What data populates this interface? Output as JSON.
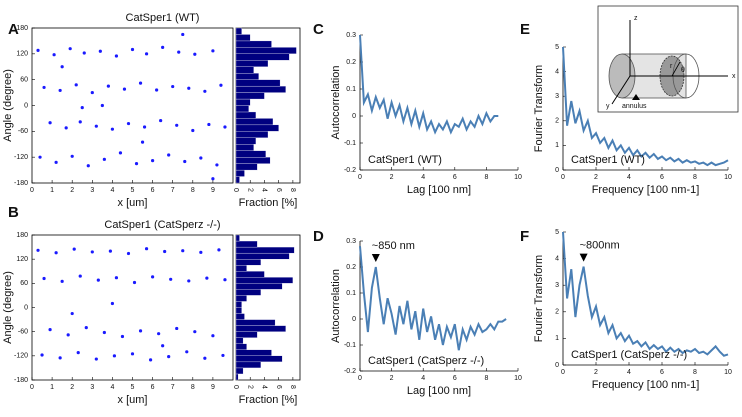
{
  "chart_data": [
    {
      "type": "scatter",
      "panel": "A",
      "title": "CatSper1 (WT)",
      "x_label": "x [um]",
      "y_label": "Angle (degree)",
      "color": "#1a1aff",
      "xlim": [
        0,
        10
      ],
      "ylim": [
        -180,
        180
      ],
      "xticks": [
        0,
        1,
        2,
        3,
        4,
        5,
        6,
        7,
        8,
        9
      ],
      "yticks": [
        -180,
        -120,
        -60,
        0,
        60,
        120,
        180
      ],
      "x": [
        0.3,
        1.1,
        1.9,
        2.6,
        3.4,
        4.2,
        5.0,
        5.7,
        6.5,
        7.3,
        8.1,
        9.0,
        0.6,
        1.4,
        2.2,
        3.0,
        3.8,
        4.6,
        5.4,
        6.2,
        7.0,
        7.8,
        8.6,
        9.4,
        0.9,
        1.7,
        2.4,
        3.2,
        4.0,
        4.8,
        5.6,
        6.4,
        7.2,
        8.0,
        8.8,
        9.6,
        0.4,
        1.2,
        2.0,
        2.8,
        3.6,
        4.4,
        5.2,
        6.0,
        6.8,
        7.6,
        8.4,
        9.2,
        1.5,
        3.5,
        5.5,
        7.5,
        9.0,
        2.5
      ],
      "values": [
        128,
        118,
        132,
        122,
        126,
        115,
        130,
        120,
        135,
        124,
        119,
        127,
        42,
        35,
        48,
        30,
        45,
        38,
        52,
        36,
        44,
        40,
        33,
        47,
        -40,
        -52,
        -38,
        -48,
        -55,
        -42,
        -50,
        -35,
        -46,
        -58,
        -44,
        -50,
        -120,
        -132,
        -118,
        -140,
        -125,
        -110,
        -135,
        -128,
        -115,
        -130,
        -122,
        -138,
        90,
        0,
        -85,
        165,
        -170,
        -5
      ]
    },
    {
      "type": "histogram",
      "x_label": "Fraction [%]",
      "color": "#000080",
      "xlim": [
        0,
        9
      ],
      "xticks": [
        0,
        2,
        4,
        6,
        8
      ],
      "ylim": [
        -180,
        180
      ],
      "bins": [
        -180,
        -165,
        -150,
        -135,
        -120,
        -105,
        -90,
        -75,
        -60,
        -45,
        -30,
        -15,
        0,
        15,
        30,
        45,
        60,
        75,
        90,
        105,
        120,
        135,
        150,
        165,
        180
      ],
      "values": [
        0.5,
        1.2,
        3.0,
        4.8,
        4.2,
        2.5,
        2.8,
        4.5,
        6.0,
        5.2,
        2.8,
        1.8,
        2.0,
        4.0,
        7.0,
        6.2,
        3.2,
        2.5,
        4.5,
        7.5,
        8.5,
        5.0,
        2.0,
        0.8
      ]
    },
    {
      "type": "scatter",
      "panel": "B",
      "title": "CatSper1 (CatSperz -/-)",
      "x_label": "x [um]",
      "y_label": "Angle (degree)",
      "color": "#1a1aff",
      "xlim": [
        0,
        10
      ],
      "ylim": [
        -180,
        180
      ],
      "xticks": [
        0,
        1,
        2,
        3,
        4,
        5,
        6,
        7,
        8,
        9
      ],
      "yticks": [
        -180,
        -120,
        -60,
        0,
        60,
        120,
        180
      ],
      "x": [
        0.3,
        1.2,
        2.1,
        3.0,
        3.9,
        4.8,
        5.7,
        6.6,
        7.5,
        8.4,
        9.3,
        0.6,
        1.5,
        2.4,
        3.3,
        4.2,
        5.1,
        6.0,
        6.9,
        7.8,
        8.7,
        9.6,
        0.9,
        1.8,
        2.7,
        3.6,
        4.5,
        5.4,
        6.3,
        7.2,
        8.1,
        9.0,
        0.5,
        1.4,
        2.3,
        3.2,
        4.1,
        5.0,
        5.9,
        6.8,
        7.7,
        8.6,
        9.5,
        2.0,
        6.5,
        4.0
      ],
      "values": [
        142,
        136,
        145,
        138,
        140,
        134,
        146,
        139,
        141,
        137,
        143,
        72,
        65,
        78,
        68,
        74,
        62,
        76,
        70,
        66,
        73,
        69,
        -55,
        -68,
        -50,
        -62,
        -72,
        -58,
        -65,
        -52,
        -60,
        -70,
        -118,
        -125,
        -112,
        -128,
        -120,
        -115,
        -130,
        -122,
        -110,
        -126,
        -119,
        -15,
        -95,
        10
      ]
    },
    {
      "type": "histogram",
      "x_label": "Fraction [%]",
      "color": "#000080",
      "xlim": [
        0,
        9
      ],
      "xticks": [
        0,
        2,
        4,
        6,
        8
      ],
      "ylim": [
        -180,
        180
      ],
      "bins": [
        -180,
        -165,
        -150,
        -135,
        -120,
        -105,
        -90,
        -75,
        -60,
        -45,
        -30,
        -15,
        0,
        15,
        30,
        45,
        60,
        75,
        90,
        105,
        120,
        135,
        150,
        165,
        180
      ],
      "values": [
        0.3,
        1.0,
        3.5,
        6.5,
        5.0,
        1.5,
        1.0,
        3.0,
        7.0,
        5.5,
        1.2,
        0.8,
        0.8,
        1.5,
        3.5,
        6.5,
        8.0,
        4.0,
        1.5,
        3.5,
        7.5,
        8.2,
        3.0,
        0.5
      ]
    },
    {
      "type": "line",
      "panel": "C",
      "label": "CatSper1 (WT)",
      "x_label": "Lag [100 nm]",
      "y_label": "Autocorrelation",
      "color": "#4a7fb5",
      "xlim": [
        0,
        10
      ],
      "ylim": [
        -0.2,
        0.3
      ],
      "xticks": [
        0,
        2,
        4,
        6,
        8,
        10
      ],
      "yticks": [
        -0.2,
        -0.1,
        0,
        0.1,
        0.2,
        0.3
      ],
      "x": [
        0,
        0.25,
        0.5,
        0.75,
        1,
        1.25,
        1.5,
        1.75,
        2,
        2.25,
        2.5,
        2.75,
        3,
        3.25,
        3.5,
        3.75,
        4,
        4.25,
        4.5,
        4.75,
        5,
        5.25,
        5.5,
        5.75,
        6,
        6.25,
        6.5,
        6.75,
        7,
        7.25,
        7.5,
        7.75,
        8,
        8.25,
        8.5,
        8.75
      ],
      "values": [
        0.3,
        0.05,
        0.08,
        0.02,
        0.07,
        0.03,
        0.06,
        -0.01,
        0.05,
        0.0,
        0.04,
        -0.02,
        0.03,
        -0.03,
        0.02,
        -0.04,
        0.01,
        -0.05,
        -0.02,
        -0.06,
        -0.03,
        -0.05,
        -0.02,
        -0.06,
        -0.03,
        -0.04,
        -0.01,
        -0.05,
        -0.02,
        -0.04,
        0.0,
        -0.03,
        0.01,
        -0.02,
        0.0,
        0.0
      ]
    },
    {
      "type": "line",
      "panel": "D",
      "label": "CatSper1 (CatSperz -/-)",
      "annotation": "~850 nm",
      "x_label": "Lag [100 nm]",
      "y_label": "Autocorrelation",
      "color": "#4a7fb5",
      "xlim": [
        0,
        10
      ],
      "ylim": [
        -0.2,
        0.3
      ],
      "xticks": [
        0,
        2,
        4,
        6,
        8,
        10
      ],
      "yticks": [
        -0.2,
        -0.1,
        0,
        0.1,
        0.2,
        0.3
      ],
      "x": [
        0,
        0.25,
        0.5,
        0.75,
        1,
        1.25,
        1.5,
        1.75,
        2,
        2.25,
        2.5,
        2.75,
        3,
        3.25,
        3.5,
        3.75,
        4,
        4.25,
        4.5,
        4.75,
        5,
        5.25,
        5.5,
        5.75,
        6,
        6.25,
        6.5,
        6.75,
        7,
        7.25,
        7.5,
        7.75,
        8,
        8.25,
        8.5,
        8.75,
        9,
        9.25
      ],
      "values": [
        0.28,
        0.1,
        -0.05,
        0.12,
        0.2,
        0.08,
        -0.02,
        0.08,
        0.02,
        -0.06,
        0.05,
        -0.02,
        0.07,
        -0.04,
        0.03,
        -0.08,
        0.04,
        -0.05,
        0.01,
        -0.08,
        -0.02,
        -0.1,
        -0.03,
        -0.07,
        -0.02,
        -0.12,
        -0.04,
        -0.08,
        -0.03,
        -0.06,
        -0.02,
        -0.05,
        -0.04,
        -0.02,
        -0.04,
        -0.01,
        -0.01,
        0.0
      ]
    },
    {
      "type": "line",
      "panel": "E",
      "label": "CatSper1 (WT)",
      "x_label": "Frequency [100 nm-1]",
      "y_label": "Fourier Transform",
      "color": "#4a7fb5",
      "inset_labels": [
        "z",
        "x",
        "y",
        "r",
        "θ",
        "annulus"
      ],
      "xlim": [
        0,
        10
      ],
      "ylim": [
        0,
        5
      ],
      "xticks": [
        0,
        2,
        4,
        6,
        8,
        10
      ],
      "yticks": [
        0,
        1,
        2,
        3,
        4,
        5
      ],
      "x": [
        0,
        0.25,
        0.5,
        0.75,
        1,
        1.25,
        1.5,
        1.75,
        2,
        2.25,
        2.5,
        2.75,
        3,
        3.25,
        3.5,
        3.75,
        4,
        4.25,
        4.5,
        4.75,
        5,
        5.25,
        5.5,
        5.75,
        6,
        6.25,
        6.5,
        6.75,
        7,
        7.25,
        7.5,
        7.75,
        8,
        8.25,
        8.5,
        8.75,
        9,
        9.25,
        9.5,
        9.75,
        10
      ],
      "values": [
        5.0,
        1.8,
        2.8,
        1.9,
        2.4,
        1.6,
        2.0,
        1.3,
        1.5,
        1.1,
        1.3,
        0.9,
        1.2,
        0.8,
        1.0,
        0.7,
        0.9,
        0.6,
        0.8,
        0.55,
        0.7,
        0.5,
        0.65,
        0.45,
        0.55,
        0.4,
        0.5,
        0.35,
        0.45,
        0.3,
        0.4,
        0.3,
        0.35,
        0.25,
        0.3,
        0.2,
        0.3,
        0.2,
        0.25,
        0.3,
        0.4
      ]
    },
    {
      "type": "line",
      "panel": "F",
      "label": "CatSper1 (CatSperz -/-)",
      "annotation": "~800nm",
      "x_label": "Frequency [100 nm-1]",
      "y_label": "Fourier Transform",
      "color": "#4a7fb5",
      "xlim": [
        0,
        10
      ],
      "ylim": [
        0,
        5
      ],
      "xticks": [
        0,
        2,
        4,
        6,
        8,
        10
      ],
      "yticks": [
        0,
        1,
        2,
        3,
        4,
        5
      ],
      "x": [
        0,
        0.25,
        0.5,
        0.75,
        1,
        1.25,
        1.5,
        1.75,
        2,
        2.25,
        2.5,
        2.75,
        3,
        3.25,
        3.5,
        3.75,
        4,
        4.25,
        4.5,
        4.75,
        5,
        5.25,
        5.5,
        5.75,
        6,
        6.25,
        6.5,
        6.75,
        7,
        7.25,
        7.5,
        7.75,
        8,
        8.25,
        8.5,
        8.75,
        9,
        9.25,
        9.5,
        9.75,
        10
      ],
      "values": [
        5.0,
        2.5,
        3.6,
        1.8,
        3.0,
        3.7,
        2.6,
        1.8,
        2.2,
        1.5,
        1.8,
        1.2,
        1.5,
        1.0,
        1.2,
        0.9,
        1.1,
        0.8,
        0.9,
        0.7,
        0.85,
        0.6,
        0.75,
        0.6,
        0.7,
        0.5,
        0.65,
        0.5,
        0.6,
        0.45,
        0.55,
        0.5,
        0.6,
        0.45,
        0.5,
        0.4,
        0.55,
        0.7,
        0.5,
        0.35,
        0.4
      ]
    }
  ]
}
